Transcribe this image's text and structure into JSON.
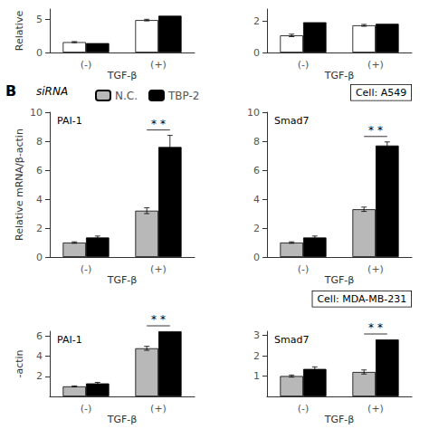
{
  "chart_data": [
    {
      "type": "bar",
      "x_label": "TGF-β",
      "y_label": "Relative",
      "categories": [
        "(-)",
        "(+)"
      ],
      "series": [
        {
          "color": "#ffffff",
          "values": [
            1.55,
            4.85
          ],
          "errors": [
            0.08,
            0.12
          ]
        },
        {
          "color": "#000000",
          "values": [
            1.4,
            5.5
          ]
        }
      ],
      "ylim": [
        0,
        6.5
      ],
      "yticks": [
        0,
        5
      ],
      "grid": false
    },
    {
      "type": "bar",
      "x_label": "TGF-β",
      "categories": [
        "(-)",
        "(+)"
      ],
      "series": [
        {
          "color": "#ffffff",
          "values": [
            1.1,
            1.75
          ],
          "errors": [
            0.08,
            0.06
          ]
        },
        {
          "color": "#000000",
          "values": [
            1.95,
            1.85
          ]
        }
      ],
      "ylim": [
        0,
        2.8
      ],
      "yticks": [
        0,
        2
      ],
      "grid": false
    },
    {
      "type": "bar",
      "title": "PAI-1",
      "x_label": "TGF-β",
      "y_label": "Relative mRNA/β-actin",
      "categories": [
        "(-)",
        "(+)"
      ],
      "series": [
        {
          "name": "N.C.",
          "color": "#b8b8b8",
          "values": [
            1.0,
            3.2
          ],
          "errors": [
            0.05,
            0.2
          ]
        },
        {
          "name": "TBP-2",
          "color": "#000000",
          "values": [
            1.35,
            7.6
          ],
          "errors": [
            0.1,
            0.8
          ]
        }
      ],
      "ylim": [
        0,
        10
      ],
      "yticks": [
        0,
        2,
        4,
        6,
        8,
        10
      ],
      "grid": false,
      "legend": "top",
      "annotations": [
        {
          "text": "B"
        },
        {
          "text": "siRNA"
        },
        {
          "text": "* *",
          "category": "(+)"
        }
      ]
    },
    {
      "type": "bar",
      "title": "Smad7",
      "x_label": "TGF-β",
      "categories": [
        "(-)",
        "(+)"
      ],
      "series": [
        {
          "name": "N.C.",
          "color": "#b8b8b8",
          "values": [
            1.0,
            3.3
          ],
          "errors": [
            0.05,
            0.15
          ]
        },
        {
          "name": "TBP-2",
          "color": "#000000",
          "values": [
            1.35,
            7.7
          ],
          "errors": [
            0.1,
            0.25
          ]
        }
      ],
      "ylim": [
        0,
        10
      ],
      "yticks": [
        0,
        2,
        4,
        6,
        8,
        10
      ],
      "grid": false,
      "annotations": [
        {
          "text": "Cell: A549"
        },
        {
          "text": "* *",
          "category": "(+)"
        }
      ]
    },
    {
      "type": "bar",
      "title": "PAI-1",
      "x_label": "TGF-β",
      "y_label": "-actin",
      "categories": [
        "(-)",
        "(+)"
      ],
      "series": [
        {
          "name": "N.C.",
          "color": "#b8b8b8",
          "values": [
            1.0,
            4.8
          ],
          "errors": [
            0.05,
            0.2
          ]
        },
        {
          "name": "TBP-2",
          "color": "#000000",
          "values": [
            1.3,
            6.5
          ],
          "errors": [
            0.1,
            null
          ]
        }
      ],
      "ylim": [
        0,
        6.5
      ],
      "yticks": [
        2,
        4,
        6
      ],
      "grid": false,
      "annotations": [
        {
          "text": "* *",
          "category": "(+)"
        }
      ]
    },
    {
      "type": "bar",
      "title": "Smad7",
      "x_label": "TGF-β",
      "categories": [
        "(-)",
        "(+)"
      ],
      "series": [
        {
          "name": "N.C.",
          "color": "#b8b8b8",
          "values": [
            1.0,
            1.2
          ],
          "errors": [
            0.05,
            0.1
          ]
        },
        {
          "name": "TBP-2",
          "color": "#000000",
          "values": [
            1.35,
            2.8
          ],
          "errors": [
            0.1,
            null
          ]
        }
      ],
      "ylim": [
        0,
        3.2
      ],
      "yticks": [
        1,
        2,
        3
      ],
      "grid": false,
      "annotations": [
        {
          "text": "Cell: MDA-MB-231"
        },
        {
          "text": "* *",
          "category": "(+)"
        }
      ]
    }
  ]
}
